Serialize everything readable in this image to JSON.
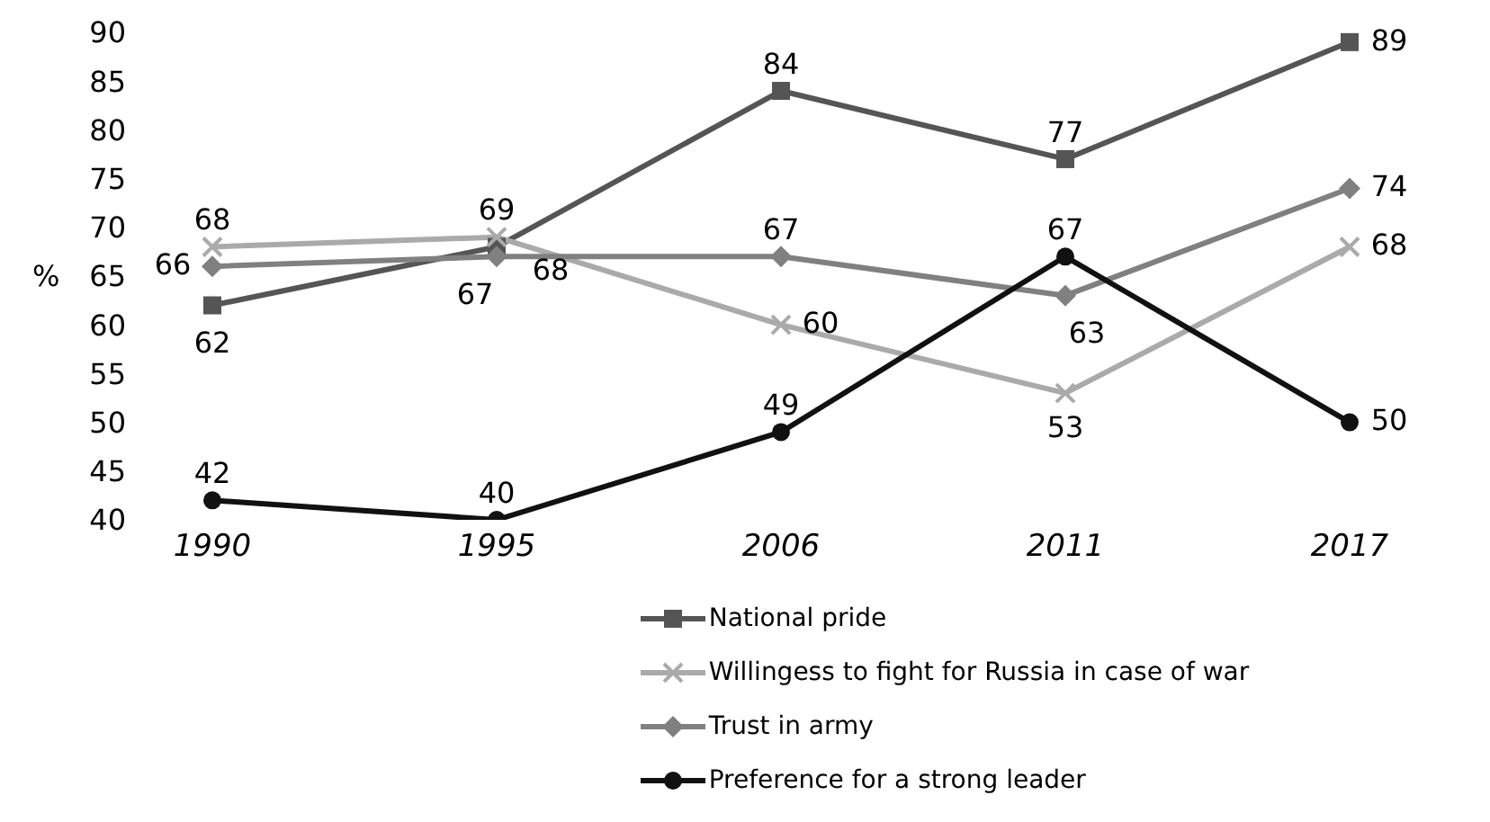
{
  "chart_data": {
    "type": "line",
    "ylabel": "%",
    "categories": [
      "1990",
      "1995",
      "2006",
      "2011",
      "2017"
    ],
    "ylim": [
      40,
      90
    ],
    "yticks": [
      40,
      45,
      50,
      55,
      60,
      65,
      70,
      75,
      80,
      85,
      90
    ],
    "grid": false,
    "legend": "bottom",
    "data_labels": true,
    "line_style": "solid",
    "series": [
      {
        "name": "National pride",
        "color": "#555555",
        "marker": "square",
        "values": [
          62,
          68,
          84,
          77,
          89
        ]
      },
      {
        "name": "Willingess to fight for Russia in case of war",
        "color": "#aaaaaa",
        "marker": "cross",
        "values": [
          68,
          69,
          60,
          53,
          68
        ]
      },
      {
        "name": "Trust in army",
        "color": "#808080",
        "marker": "diamond",
        "values": [
          66,
          67,
          67,
          63,
          74
        ]
      },
      {
        "name": "Preference for a strong leader",
        "color": "#111111",
        "marker": "circle",
        "values": [
          42,
          40,
          49,
          67,
          50
        ]
      }
    ]
  }
}
